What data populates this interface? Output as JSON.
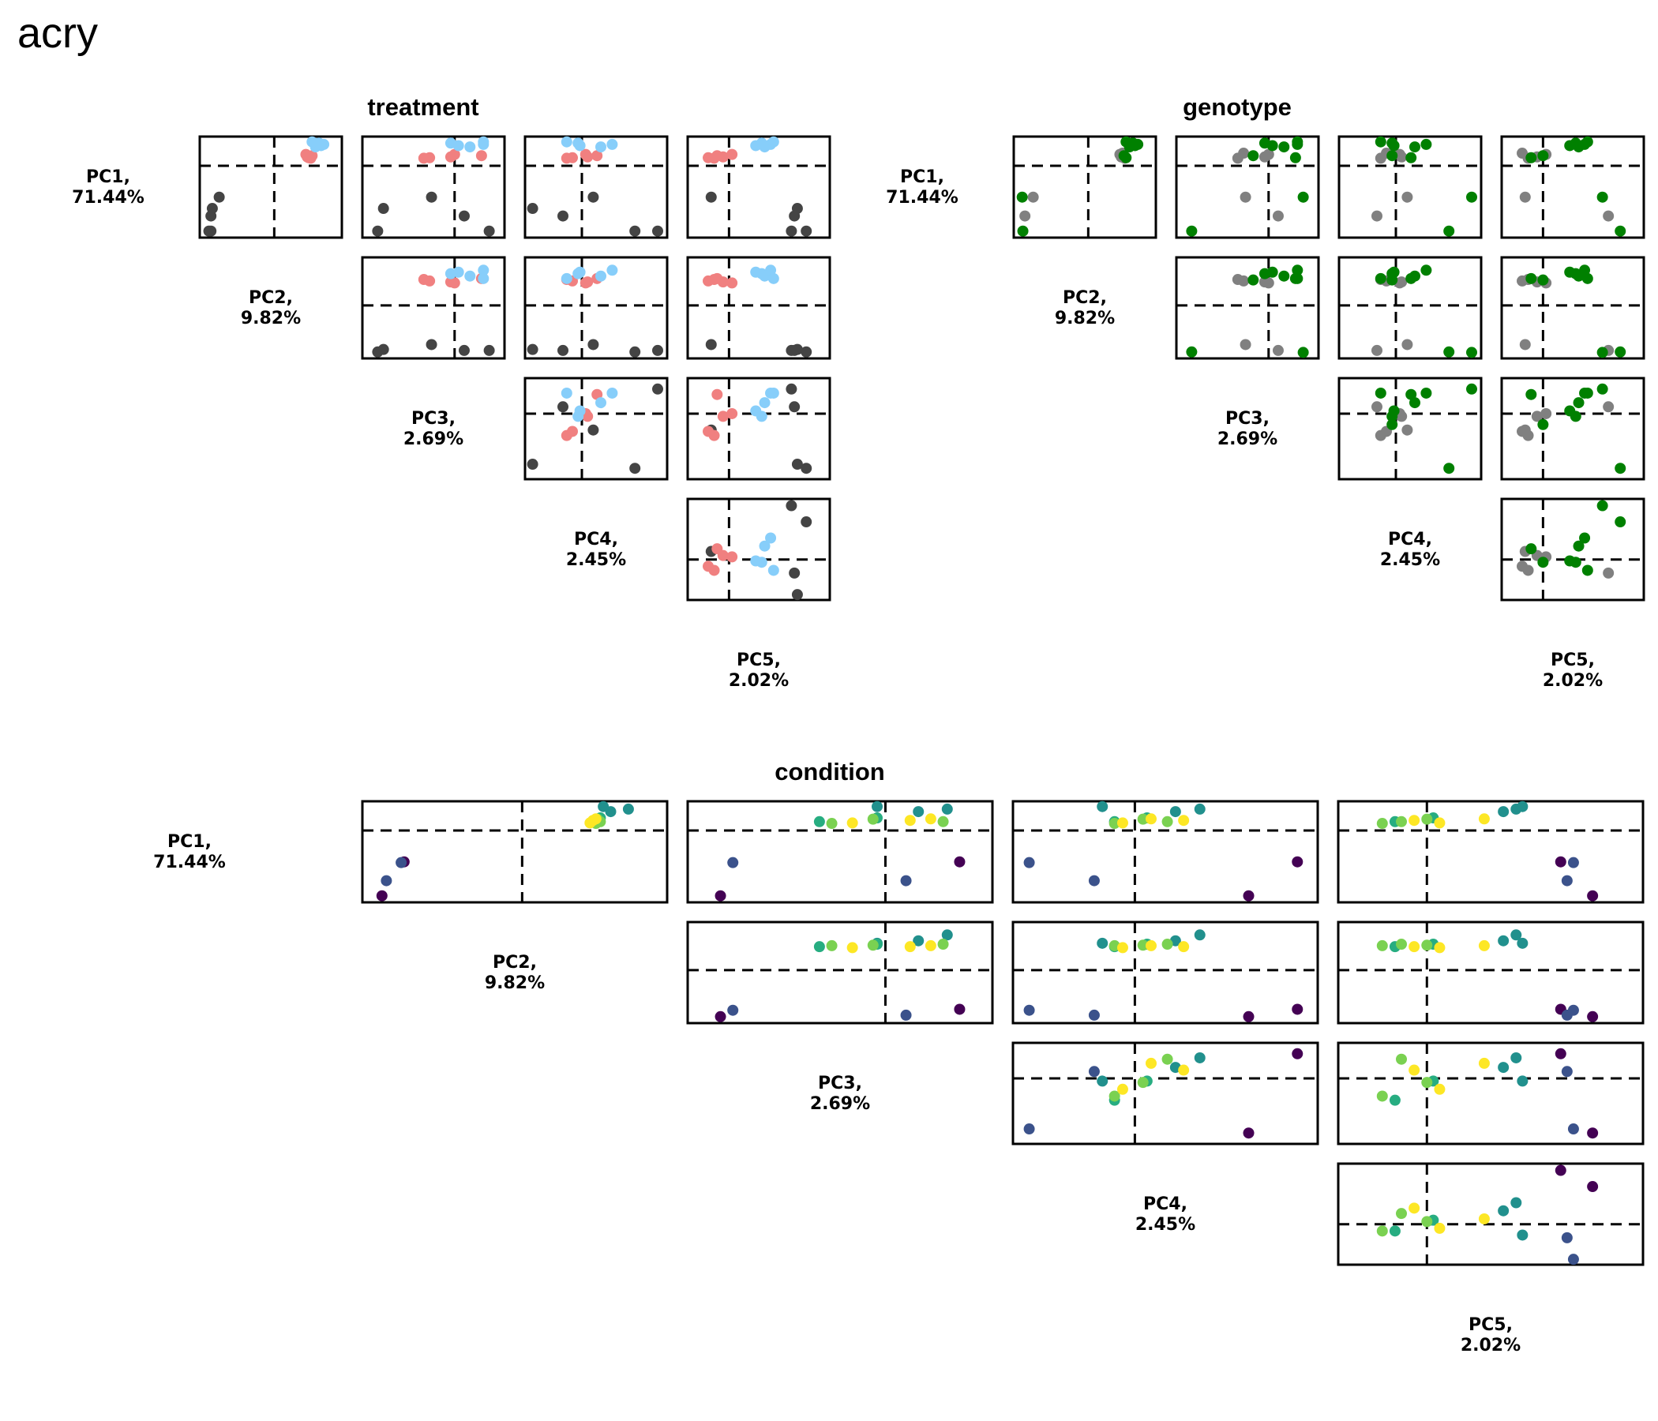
{
  "title": "acry",
  "chart_data": [
    {
      "type": "scatter",
      "name": "treatment",
      "title": "treatment",
      "colors": [
        "#444444",
        "#f08080",
        "#87cefa"
      ],
      "dims": [
        {
          "label": "PC1,",
          "pct": "71.44%"
        },
        {
          "label": "PC2,",
          "pct": "9.82%"
        },
        {
          "label": "PC3,",
          "pct": "2.69%"
        },
        {
          "label": "PC4,",
          "pct": "2.45%"
        },
        {
          "label": "PC5,",
          "pct": "2.02%"
        }
      ],
      "ranges": [
        [
          -27,
          10
        ],
        [
          -10,
          9
        ],
        [
          -4.5,
          2.3
        ],
        [
          -2.7,
          4.2
        ],
        [
          -1.2,
          3.2
        ]
      ],
      "samples": [
        {
          "g": 0,
          "pc": [
            -26.0,
            -9.5,
            -4.0,
            2.8,
            2.6
          ]
        },
        {
          "g": 0,
          "pc": [
            -26.0,
            -9.2,
            1.8,
            4.0,
            2.1
          ]
        },
        {
          "g": 0,
          "pc": [
            -20.0,
            -9.2,
            0.5,
            -1.0,
            2.2
          ]
        },
        {
          "g": 0,
          "pc": [
            -17.0,
            -9.0,
            -3.7,
            -2.6,
            2.3
          ]
        },
        {
          "g": 0,
          "pc": [
            -12.5,
            -8.0,
            -1.2,
            0.6,
            -0.6
          ]
        },
        {
          "g": 1,
          "pc": [
            3.0,
            5.3,
            -1.6,
            -0.8,
            -0.5
          ]
        },
        {
          "g": 1,
          "pc": [
            3.5,
            4.8,
            -0.2,
            0.3,
            -0.2
          ]
        },
        {
          "g": 1,
          "pc": [
            4.5,
            4.6,
            0.0,
            0.2,
            0.1
          ]
        },
        {
          "g": 1,
          "pc": [
            3.2,
            5.0,
            -1.3,
            -0.5,
            -0.7
          ]
        },
        {
          "g": 1,
          "pc": [
            4.0,
            5.5,
            1.4,
            0.8,
            -0.4
          ]
        },
        {
          "g": 2,
          "pc": [
            7.5,
            6.0,
            0.8,
            1.0,
            1.2
          ]
        },
        {
          "g": 2,
          "pc": [
            8.0,
            6.8,
            0.2,
            -0.1,
            0.9
          ]
        },
        {
          "g": 2,
          "pc": [
            8.5,
            7.2,
            1.5,
            1.6,
            1.4
          ]
        },
        {
          "g": 2,
          "pc": [
            9.0,
            6.5,
            -0.2,
            -0.2,
            1.1
          ]
        },
        {
          "g": 2,
          "pc": [
            9.5,
            5.5,
            1.5,
            -0.8,
            1.5
          ]
        }
      ]
    },
    {
      "type": "scatter",
      "name": "genotype",
      "title": "genotype",
      "colors": [
        "#808080",
        "#008000"
      ],
      "dims": [
        {
          "label": "PC1,",
          "pct": "71.44%"
        },
        {
          "label": "PC2,",
          "pct": "9.82%"
        },
        {
          "label": "PC3,",
          "pct": "2.69%"
        },
        {
          "label": "PC4,",
          "pct": "2.45%"
        },
        {
          "label": "PC5,",
          "pct": "2.02%"
        }
      ],
      "ranges": [
        [
          -27,
          10
        ],
        [
          -10,
          9
        ],
        [
          -4.5,
          2.3
        ],
        [
          -2.7,
          4.2
        ],
        [
          -1.2,
          3.2
        ]
      ],
      "samples": [
        {
          "g": 1,
          "pc": [
            -26.0,
            -9.5,
            -4.0,
            2.8,
            2.6
          ]
        },
        {
          "g": 0,
          "pc": [
            -20.0,
            -9.2,
            0.5,
            -1.0,
            2.2
          ]
        },
        {
          "g": 0,
          "pc": [
            -12.5,
            -8.0,
            -1.2,
            0.6,
            -0.6
          ]
        },
        {
          "g": 1,
          "pc": [
            -12.5,
            -9.6,
            1.8,
            4.0,
            2.0
          ]
        },
        {
          "g": 0,
          "pc": [
            3.0,
            5.3,
            -1.6,
            -0.8,
            -0.5
          ]
        },
        {
          "g": 0,
          "pc": [
            3.5,
            4.8,
            -0.2,
            0.3,
            -0.2
          ]
        },
        {
          "g": 0,
          "pc": [
            4.5,
            4.6,
            0.0,
            0.2,
            0.1
          ]
        },
        {
          "g": 0,
          "pc": [
            5.0,
            5.0,
            -1.3,
            -0.5,
            -0.7
          ]
        },
        {
          "g": 1,
          "pc": [
            3.2,
            5.5,
            1.4,
            0.8,
            -0.4
          ]
        },
        {
          "g": 1,
          "pc": [
            4.0,
            5.2,
            -0.8,
            -0.2,
            0.0
          ]
        },
        {
          "g": 1,
          "pc": [
            7.5,
            6.0,
            0.8,
            1.0,
            1.2
          ]
        },
        {
          "g": 1,
          "pc": [
            8.0,
            6.8,
            0.2,
            -0.1,
            0.9
          ]
        },
        {
          "g": 1,
          "pc": [
            8.5,
            7.2,
            1.5,
            1.6,
            1.4
          ]
        },
        {
          "g": 1,
          "pc": [
            9.0,
            6.5,
            -0.2,
            -0.2,
            1.1
          ]
        },
        {
          "g": 1,
          "pc": [
            9.5,
            5.5,
            1.5,
            -0.8,
            1.5
          ]
        }
      ]
    },
    {
      "type": "scatter",
      "name": "condition",
      "title": "condition",
      "colors": [
        "#440154",
        "#3b528b",
        "#21908d",
        "#27ad81",
        "#7ad151",
        "#fde725"
      ],
      "dims": [
        {
          "label": "PC1,",
          "pct": "71.44%"
        },
        {
          "label": "PC2,",
          "pct": "9.82%"
        },
        {
          "label": "PC3,",
          "pct": "2.69%"
        },
        {
          "label": "PC4,",
          "pct": "2.45%"
        },
        {
          "label": "PC5,",
          "pct": "2.02%"
        }
      ],
      "ranges": [
        [
          -27,
          10
        ],
        [
          -10,
          9
        ],
        [
          -4.5,
          2.3
        ],
        [
          -2.7,
          4.2
        ],
        [
          -1.2,
          3.2
        ]
      ],
      "samples": [
        {
          "g": 0,
          "pc": [
            -26.0,
            -9.5,
            -4.0,
            2.8,
            2.6
          ]
        },
        {
          "g": 0,
          "pc": [
            -12.5,
            -8.0,
            1.8,
            4.0,
            2.1
          ]
        },
        {
          "g": 1,
          "pc": [
            -20.0,
            -9.2,
            0.5,
            -1.0,
            2.2
          ]
        },
        {
          "g": 1,
          "pc": [
            -12.8,
            -8.2,
            -3.7,
            -2.6,
            2.3
          ]
        },
        {
          "g": 2,
          "pc": [
            7.5,
            6.0,
            0.8,
            1.0,
            1.2
          ]
        },
        {
          "g": 2,
          "pc": [
            8.5,
            7.2,
            1.5,
            1.6,
            1.4
          ]
        },
        {
          "g": 2,
          "pc": [
            9.5,
            5.5,
            -0.2,
            -0.8,
            1.5
          ]
        },
        {
          "g": 3,
          "pc": [
            3.5,
            4.8,
            -1.6,
            -0.5,
            -0.5
          ]
        },
        {
          "g": 3,
          "pc": [
            5.0,
            5.3,
            -0.2,
            0.3,
            0.1
          ]
        },
        {
          "g": 4,
          "pc": [
            2.8,
            5.0,
            -1.3,
            -0.5,
            -0.7
          ]
        },
        {
          "g": 4,
          "pc": [
            3.5,
            5.3,
            1.4,
            0.8,
            -0.4
          ]
        },
        {
          "g": 4,
          "pc": [
            4.5,
            5.1,
            -0.3,
            0.2,
            0.0
          ]
        },
        {
          "g": 5,
          "pc": [
            3.0,
            4.6,
            -0.8,
            -0.3,
            0.2
          ]
        },
        {
          "g": 5,
          "pc": [
            4.0,
            4.8,
            0.6,
            1.2,
            -0.2
          ]
        },
        {
          "g": 5,
          "pc": [
            4.6,
            5.0,
            1.1,
            0.4,
            0.9
          ]
        }
      ]
    }
  ]
}
